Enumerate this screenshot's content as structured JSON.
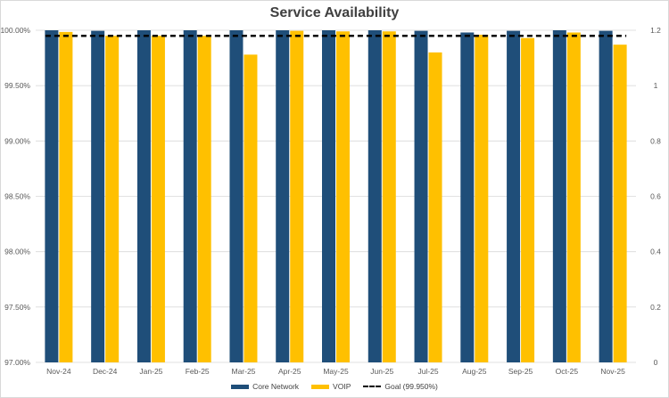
{
  "colors": {
    "core": "#1f4e79",
    "voip": "#ffc000",
    "goal": "#000000",
    "grid": "#d9d9d9",
    "text": "#595959"
  },
  "chart_data": {
    "type": "bar",
    "title": "Service Availability",
    "categories": [
      "Nov-24",
      "Dec-24",
      "Jan-25",
      "Feb-25",
      "Mar-25",
      "Apr-25",
      "May-25",
      "Jun-25",
      "Jul-25",
      "Aug-25",
      "Sep-25",
      "Oct-25",
      "Nov-25"
    ],
    "series": [
      {
        "name": "Core Network",
        "values": [
          100.0,
          99.995,
          100.0,
          100.0,
          100.0,
          100.0,
          100.0,
          100.0,
          99.995,
          99.98,
          99.995,
          100.0,
          99.995
        ]
      },
      {
        "name": "VOIP",
        "values": [
          99.985,
          99.95,
          99.95,
          99.95,
          99.78,
          99.995,
          99.99,
          99.99,
          99.8,
          99.96,
          99.93,
          99.98,
          99.87
        ]
      }
    ],
    "goal": {
      "name": "Goal (99.950%)",
      "value": 99.95
    },
    "ylim": [
      97.0,
      100.0
    ],
    "y_ticks": [
      "97.00%",
      "97.50%",
      "98.00%",
      "98.50%",
      "99.00%",
      "99.50%",
      "100.00%"
    ],
    "y2lim": [
      0,
      1.2
    ],
    "y2_ticks": [
      "0",
      "0.2",
      "0.4",
      "0.6",
      "0.8",
      "1",
      "1.2"
    ],
    "legend_position": "bottom",
    "grid": true
  }
}
